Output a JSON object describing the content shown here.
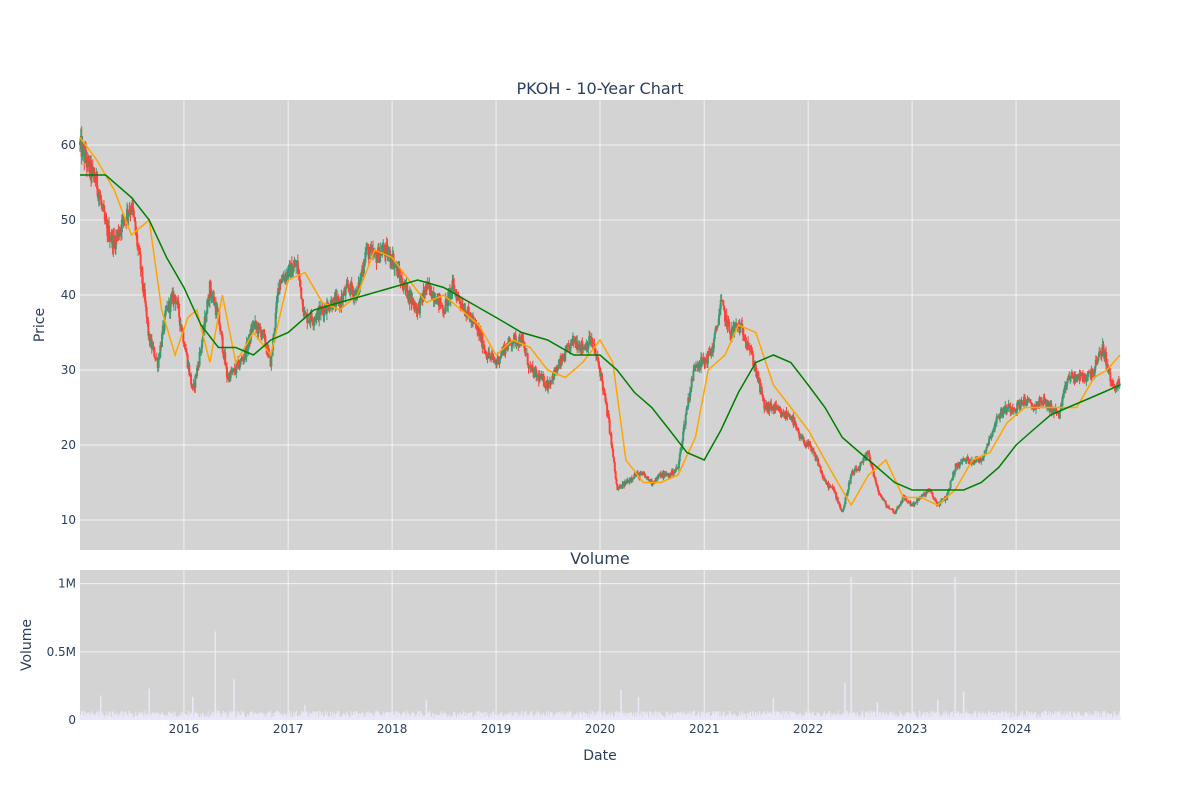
{
  "chart_data": [
    {
      "type": "candlestick",
      "title": "PKOH - 10-Year Chart",
      "ylabel": "Price",
      "ylim": [
        6,
        66
      ],
      "yticks": [
        10,
        20,
        30,
        40,
        50,
        60
      ],
      "ytick_labels": [
        "10",
        "20",
        "30",
        "40",
        "50",
        "60"
      ],
      "xlim": [
        "2015-01-01",
        "2024-12-31"
      ],
      "xticks": [
        "2016-01-01",
        "2017-01-01",
        "2018-01-01",
        "2019-01-01",
        "2020-01-01",
        "2021-01-01",
        "2022-01-01",
        "2023-01-01",
        "2024-01-01"
      ],
      "xtick_labels": [
        "2016",
        "2017",
        "2018",
        "2019",
        "2020",
        "2021",
        "2022",
        "2023",
        "2024"
      ],
      "grid": true,
      "background": "#d3d3d3",
      "colors": {
        "up": "#3d9970",
        "down": "#ff4136",
        "ma_short": "#ffa500",
        "ma_long": "#008000"
      },
      "price_path": {
        "x": [
          "2015-01-01",
          "2015-02-01",
          "2015-03-01",
          "2015-04-01",
          "2015-05-01",
          "2015-06-01",
          "2015-07-01",
          "2015-08-01",
          "2015-09-01",
          "2015-10-01",
          "2015-11-01",
          "2015-12-01",
          "2016-01-01",
          "2016-02-01",
          "2016-03-01",
          "2016-04-01",
          "2016-05-01",
          "2016-06-01",
          "2016-07-01",
          "2016-08-01",
          "2016-09-01",
          "2016-10-01",
          "2016-11-01",
          "2016-12-01",
          "2017-01-01",
          "2017-02-01",
          "2017-03-01",
          "2017-04-01",
          "2017-05-01",
          "2017-06-01",
          "2017-07-01",
          "2017-08-01",
          "2017-09-01",
          "2017-10-01",
          "2017-11-01",
          "2017-12-01",
          "2018-01-01",
          "2018-02-01",
          "2018-03-01",
          "2018-04-01",
          "2018-05-01",
          "2018-06-01",
          "2018-07-01",
          "2018-08-01",
          "2018-09-01",
          "2018-10-01",
          "2018-11-01",
          "2018-12-01",
          "2019-01-01",
          "2019-02-01",
          "2019-03-01",
          "2019-04-01",
          "2019-05-01",
          "2019-06-01",
          "2019-07-01",
          "2019-08-01",
          "2019-09-01",
          "2019-10-01",
          "2019-11-01",
          "2019-12-01",
          "2020-01-01",
          "2020-02-01",
          "2020-03-01",
          "2020-04-01",
          "2020-05-01",
          "2020-06-01",
          "2020-07-01",
          "2020-08-01",
          "2020-09-01",
          "2020-10-01",
          "2020-11-01",
          "2020-12-01",
          "2021-01-01",
          "2021-02-01",
          "2021-03-01",
          "2021-04-01",
          "2021-05-01",
          "2021-06-01",
          "2021-07-01",
          "2021-08-01",
          "2021-09-01",
          "2021-10-01",
          "2021-11-01",
          "2021-12-01",
          "2022-01-01",
          "2022-02-01",
          "2022-03-01",
          "2022-04-01",
          "2022-05-01",
          "2022-06-01",
          "2022-07-01",
          "2022-08-01",
          "2022-09-01",
          "2022-10-01",
          "2022-11-01",
          "2022-12-01",
          "2023-01-01",
          "2023-02-01",
          "2023-03-01",
          "2023-04-01",
          "2023-05-01",
          "2023-06-01",
          "2023-07-01",
          "2023-08-01",
          "2023-09-01",
          "2023-10-01",
          "2023-11-01",
          "2023-12-01",
          "2024-01-01",
          "2024-02-01",
          "2024-03-01",
          "2024-04-01",
          "2024-05-01",
          "2024-06-01",
          "2024-07-01",
          "2024-08-01",
          "2024-09-01",
          "2024-10-01",
          "2024-11-01",
          "2024-12-01"
        ],
        "close": [
          60,
          57,
          55,
          49,
          47,
          50,
          52,
          44,
          34,
          31,
          38,
          40,
          34,
          27,
          33,
          41,
          37,
          29,
          30,
          32,
          36,
          35,
          31,
          42,
          43,
          44,
          37,
          37,
          38,
          39,
          39,
          41,
          40,
          46,
          45,
          46,
          45,
          42,
          40,
          38,
          41,
          40,
          38,
          41,
          39,
          37,
          35,
          32,
          31,
          33,
          34,
          34,
          30,
          29,
          28,
          30,
          32,
          34,
          33,
          34,
          30,
          23,
          14,
          15,
          16,
          16,
          15,
          16,
          16,
          17,
          25,
          31,
          31,
          33,
          39,
          35,
          36,
          34,
          30,
          25,
          25,
          24,
          24,
          21,
          20,
          18,
          15,
          14,
          11,
          16,
          17,
          19,
          14,
          12,
          11,
          13,
          12,
          13,
          14,
          12,
          13,
          17,
          18,
          18,
          18,
          21,
          24,
          25,
          25,
          26,
          25,
          26,
          25,
          24,
          29,
          29,
          29,
          30,
          33,
          28
        ]
      },
      "series": [
        {
          "name": "short moving average",
          "x": [
            "2015-01-01",
            "2015-03-01",
            "2015-05-01",
            "2015-07-01",
            "2015-09-01",
            "2015-10-15",
            "2015-12-01",
            "2016-01-15",
            "2016-02-15",
            "2016-04-01",
            "2016-05-15",
            "2016-07-01",
            "2016-09-01",
            "2016-11-01",
            "2017-01-01",
            "2017-03-01",
            "2017-05-01",
            "2017-07-01",
            "2017-09-01",
            "2017-11-01",
            "2018-01-01",
            "2018-03-01",
            "2018-05-01",
            "2018-07-01",
            "2018-09-01",
            "2018-11-01",
            "2019-01-01",
            "2019-03-01",
            "2019-05-01",
            "2019-07-01",
            "2019-09-01",
            "2019-11-01",
            "2020-01-01",
            "2020-02-15",
            "2020-04-01",
            "2020-06-01",
            "2020-08-01",
            "2020-10-01",
            "2020-12-01",
            "2021-01-15",
            "2021-03-15",
            "2021-05-01",
            "2021-07-01",
            "2021-09-01",
            "2021-11-01",
            "2022-01-01",
            "2022-03-01",
            "2022-04-15",
            "2022-06-01",
            "2022-08-01",
            "2022-10-01",
            "2022-12-01",
            "2023-02-01",
            "2023-04-01",
            "2023-06-01",
            "2023-08-01",
            "2023-10-01",
            "2023-12-01",
            "2024-02-01",
            "2024-04-01",
            "2024-06-01",
            "2024-08-01",
            "2024-10-01",
            "2024-11-15",
            "2024-12-31"
          ],
          "values": [
            61,
            58,
            54,
            48,
            50,
            38,
            32,
            37,
            38,
            31,
            40,
            31,
            35,
            32,
            42,
            43,
            39,
            38,
            40,
            46,
            45,
            42,
            39,
            40,
            38,
            36,
            32,
            34,
            33,
            30,
            29,
            31,
            34,
            31,
            18,
            15,
            15,
            16,
            21,
            30,
            32,
            36,
            35,
            28,
            25,
            22,
            18,
            15,
            12,
            16,
            18,
            13,
            13,
            12,
            14,
            18,
            19,
            23,
            25,
            25,
            25,
            25,
            29,
            30,
            32
          ]
        },
        {
          "name": "long moving average",
          "x": [
            "2015-01-01",
            "2015-04-01",
            "2015-07-01",
            "2015-09-01",
            "2015-11-01",
            "2016-01-01",
            "2016-03-01",
            "2016-05-01",
            "2016-07-01",
            "2016-09-01",
            "2016-11-01",
            "2017-01-01",
            "2017-04-01",
            "2017-07-01",
            "2017-10-01",
            "2018-01-01",
            "2018-04-01",
            "2018-07-01",
            "2018-10-01",
            "2019-01-01",
            "2019-04-01",
            "2019-07-01",
            "2019-10-01",
            "2020-01-01",
            "2020-03-01",
            "2020-05-01",
            "2020-07-01",
            "2020-09-01",
            "2020-11-01",
            "2021-01-01",
            "2021-03-01",
            "2021-05-01",
            "2021-07-01",
            "2021-09-01",
            "2021-11-01",
            "2022-01-01",
            "2022-03-01",
            "2022-05-01",
            "2022-07-01",
            "2022-09-01",
            "2022-11-01",
            "2023-01-01",
            "2023-03-01",
            "2023-05-01",
            "2023-07-01",
            "2023-09-01",
            "2023-11-01",
            "2024-01-01",
            "2024-03-01",
            "2024-05-01",
            "2024-07-01",
            "2024-09-01",
            "2024-11-01",
            "2024-12-31"
          ],
          "values": [
            56,
            56,
            53,
            50,
            45,
            41,
            36,
            33,
            33,
            32,
            34,
            35,
            38,
            39,
            40,
            41,
            42,
            41,
            39,
            37,
            35,
            34,
            32,
            32,
            30,
            27,
            25,
            22,
            19,
            18,
            22,
            27,
            31,
            32,
            31,
            28,
            25,
            21,
            19,
            17,
            15,
            14,
            14,
            14,
            14,
            15,
            17,
            20,
            22,
            24,
            25,
            26,
            27,
            28
          ]
        }
      ]
    },
    {
      "type": "bar",
      "title": "Volume",
      "xlabel": "Date",
      "ylabel": "Volume",
      "ylim": [
        0,
        1100000
      ],
      "yticks": [
        0,
        500000,
        1000000
      ],
      "ytick_labels": [
        "0",
        "0.5M",
        "1M"
      ],
      "xlim": [
        "2015-01-01",
        "2024-12-31"
      ],
      "xticks": [
        "2016-01-01",
        "2017-01-01",
        "2018-01-01",
        "2019-01-01",
        "2020-01-01",
        "2021-01-01",
        "2022-01-01",
        "2023-01-01",
        "2024-01-01"
      ],
      "xtick_labels": [
        "2016",
        "2017",
        "2018",
        "2019",
        "2020",
        "2021",
        "2022",
        "2023",
        "2024"
      ],
      "grid": true,
      "background": "#d3d3d3",
      "bar_color": "#e8e8f8",
      "baseline": 40000,
      "spikes": [
        {
          "date": "2015-03-15",
          "value": 180000
        },
        {
          "date": "2015-09-01",
          "value": 230000
        },
        {
          "date": "2016-02-01",
          "value": 170000
        },
        {
          "date": "2016-04-20",
          "value": 650000
        },
        {
          "date": "2016-06-25",
          "value": 300000
        },
        {
          "date": "2017-03-01",
          "value": 110000
        },
        {
          "date": "2018-05-01",
          "value": 150000
        },
        {
          "date": "2020-03-15",
          "value": 220000
        },
        {
          "date": "2020-05-15",
          "value": 170000
        },
        {
          "date": "2021-09-01",
          "value": 160000
        },
        {
          "date": "2022-05-10",
          "value": 270000
        },
        {
          "date": "2022-06-01",
          "value": 1050000
        },
        {
          "date": "2022-09-01",
          "value": 130000
        },
        {
          "date": "2023-04-01",
          "value": 150000
        },
        {
          "date": "2023-06-01",
          "value": 1050000
        },
        {
          "date": "2023-07-01",
          "value": 210000
        }
      ]
    }
  ]
}
